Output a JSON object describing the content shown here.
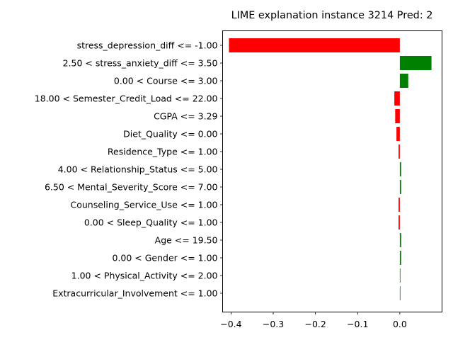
{
  "chart_data": {
    "type": "bar",
    "orientation": "horizontal",
    "title": "LIME explanation instance 3214 Pred: 2",
    "xlabel": "",
    "ylabel": "",
    "xlim": [
      -0.42,
      0.1
    ],
    "xticks": [
      -0.4,
      -0.3,
      -0.2,
      -0.1,
      0.0
    ],
    "xtick_labels": [
      "−0.4",
      "−0.3",
      "−0.2",
      "−0.1",
      "0.0"
    ],
    "grid": false,
    "legend": "none",
    "colors": {
      "positive": "#008000",
      "negative": "#ff0000"
    },
    "categories": [
      "stress_depression_diff <= -1.00",
      "2.50 < stress_anxiety_diff <= 3.50",
      "0.00 < Course <= 3.00",
      "18.00 < Semester_Credit_Load <= 22.00",
      "CGPA <= 3.29",
      "Diet_Quality <= 0.00",
      "Residence_Type <= 1.00",
      "4.00 < Relationship_Status <= 5.00",
      "6.50 < Mental_Severity_Score <= 7.00",
      "Counseling_Service_Use <= 1.00",
      "0.00 < Sleep_Quality <= 1.00",
      "Age <= 19.50",
      "0.00 < Gender <= 1.00",
      "1.00 < Physical_Activity <= 2.00",
      "Extracurricular_Involvement <= 1.00"
    ],
    "values": [
      -0.405,
      0.075,
      0.02,
      -0.013,
      -0.011,
      -0.008,
      -0.003,
      0.003,
      0.003,
      -0.003,
      -0.003,
      0.003,
      0.003,
      0.001,
      0.001
    ]
  }
}
